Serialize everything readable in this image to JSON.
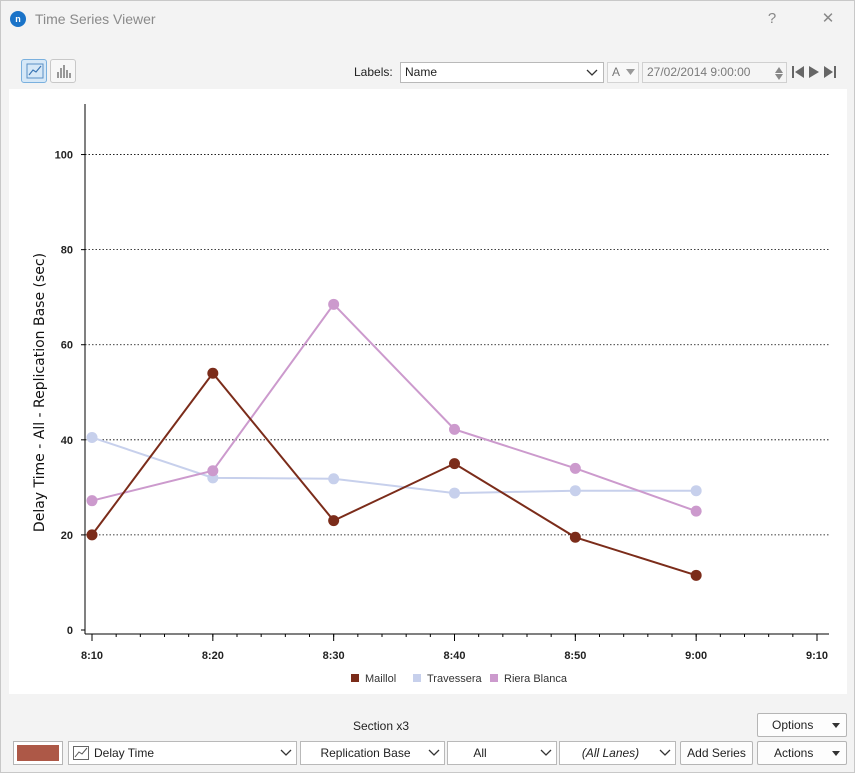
{
  "window": {
    "title": "Time Series Viewer",
    "help_label": "?",
    "close_label": "✕",
    "app_icon_label": "n"
  },
  "toolbar": {
    "labels_label": "Labels:",
    "labels_value": "Name",
    "font_button_label": "A",
    "datetime_value": "27/02/2014 9:00:00"
  },
  "colors": {
    "maillol": "#7b2c1a",
    "travessera": "#c7d0ec",
    "riera_blanca": "#cc9acd",
    "series_swatch": "#ad5847"
  },
  "chart_data": {
    "type": "line",
    "categories": [
      "8:10",
      "8:20",
      "8:30",
      "8:40",
      "8:50",
      "9:00"
    ],
    "x_ticks": [
      "8:10",
      "8:20",
      "8:30",
      "8:40",
      "8:50",
      "9:00",
      "9:10"
    ],
    "ylabel": "Delay Time - All - Replication Base (sec)",
    "xlabel": "",
    "ylim": [
      0,
      110
    ],
    "y_ticks": [
      0,
      20,
      40,
      60,
      80,
      100
    ],
    "grid": "horizontal dotted",
    "legend_position": "bottom-center",
    "series": [
      {
        "name": "Maillol",
        "values": [
          20,
          54,
          23,
          35,
          19.5,
          11.5
        ]
      },
      {
        "name": "Travessera",
        "values": [
          40.5,
          32,
          31.8,
          28.8,
          29.3,
          29.3
        ]
      },
      {
        "name": "Riera Blanca",
        "values": [
          27.2,
          33.5,
          68.5,
          42.2,
          34,
          25
        ]
      }
    ]
  },
  "bottom": {
    "section_label": "Section x3",
    "options_label": "Options",
    "series_type": "Delay Time",
    "replication": "Replication Base",
    "scope": "All",
    "lanes": "(All Lanes)",
    "add_series_label": "Add Series",
    "actions_label": "Actions"
  }
}
